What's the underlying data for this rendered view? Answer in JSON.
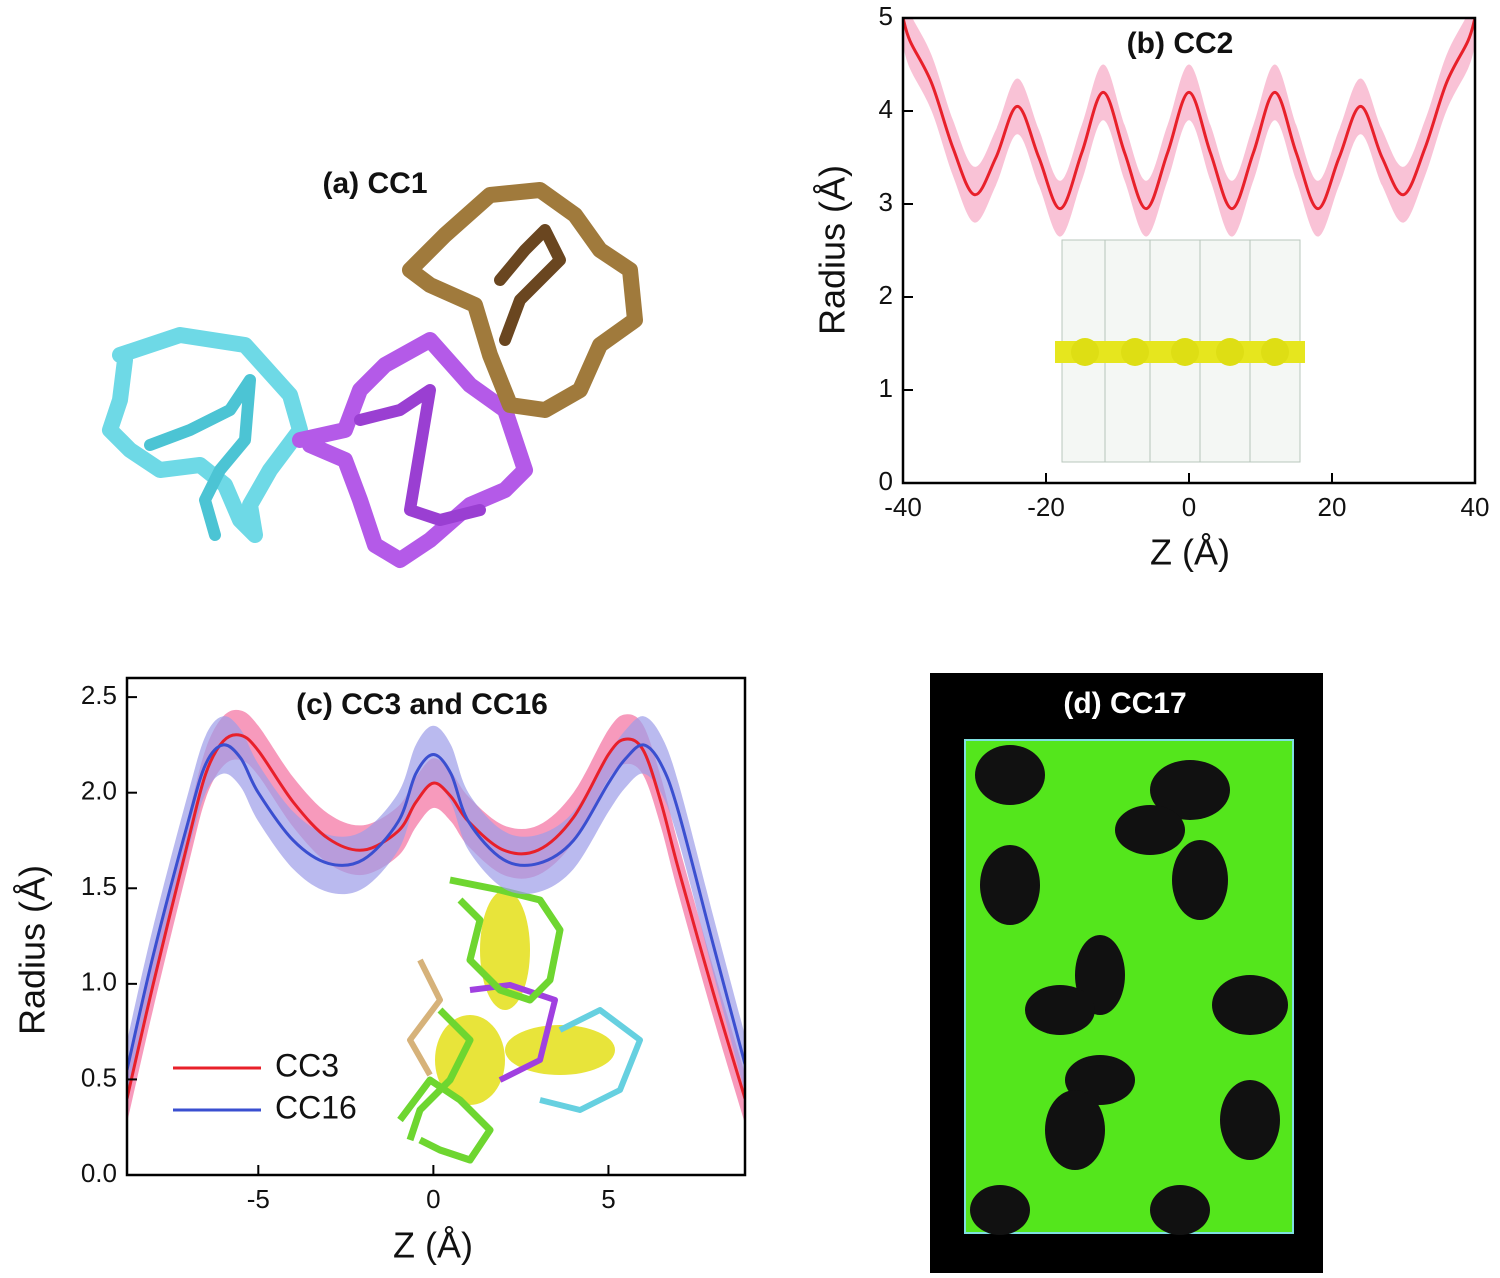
{
  "figure": {
    "panel_a_title": "(a) CC1",
    "panel_d_title": "(d) CC17"
  },
  "chart_data": [
    {
      "type": "line",
      "title": "(b) CC2",
      "xlabel": "Z (Å)",
      "ylabel": "Radius (Å)",
      "x": [
        -40,
        -39,
        -36,
        -33,
        -30,
        -27,
        -24,
        -21,
        -18,
        -15,
        -12,
        -9,
        -6,
        -3,
        0,
        3,
        6,
        9,
        12,
        15,
        18,
        21,
        24,
        27,
        30,
        33,
        36,
        39,
        40
      ],
      "series": [
        {
          "name": "CC2",
          "color": "#e8202a",
          "band_color": "#f7a8c4",
          "band": 0.3,
          "values": [
            5.0,
            4.75,
            4.3,
            3.6,
            3.1,
            3.5,
            4.05,
            3.5,
            2.95,
            3.55,
            4.2,
            3.55,
            2.95,
            3.55,
            4.2,
            3.55,
            2.95,
            3.55,
            4.2,
            3.55,
            2.95,
            3.5,
            4.05,
            3.5,
            3.1,
            3.6,
            4.3,
            4.75,
            5.0
          ]
        }
      ],
      "xlim": [
        -40,
        40
      ],
      "ylim": [
        0,
        5
      ],
      "xticks": [
        -40,
        -20,
        0,
        20,
        40
      ],
      "yticks": [
        0,
        1,
        2,
        3,
        4,
        5
      ],
      "legend": false
    },
    {
      "type": "line",
      "title": "(c) CC3 and CC16",
      "xlabel": "Z (Å)",
      "ylabel": "Radius (Å)",
      "x": [
        -8.75,
        -8,
        -7,
        -6.5,
        -6,
        -5.5,
        -5,
        -4,
        -3,
        -2,
        -1,
        -0.5,
        0,
        0.5,
        1,
        2,
        3,
        4,
        5,
        5.5,
        6,
        6.5,
        7,
        8,
        8.9
      ],
      "series": [
        {
          "name": "CC3",
          "color": "#e8202a",
          "band_color": "#f46fa0",
          "band": 0.13,
          "values": [
            0.4,
            1.0,
            1.75,
            2.1,
            2.27,
            2.3,
            2.22,
            1.95,
            1.76,
            1.7,
            1.8,
            1.95,
            2.05,
            1.98,
            1.85,
            1.7,
            1.7,
            1.87,
            2.2,
            2.28,
            2.22,
            1.95,
            1.6,
            0.95,
            0.4
          ]
        },
        {
          "name": "CC16",
          "color": "#3a4fd0",
          "band_color": "#9c9ce8",
          "band": 0.15,
          "values": [
            0.55,
            1.15,
            1.85,
            2.15,
            2.25,
            2.18,
            2.0,
            1.75,
            1.63,
            1.65,
            1.85,
            2.1,
            2.2,
            2.1,
            1.85,
            1.65,
            1.63,
            1.75,
            2.05,
            2.18,
            2.25,
            2.15,
            1.9,
            1.2,
            0.58
          ]
        }
      ],
      "xlim": [
        -8.75,
        8.9
      ],
      "ylim": [
        0,
        2.6
      ],
      "xticks": [
        -5,
        0,
        5
      ],
      "yticks": [
        {
          "value": 0,
          "label": "0.0"
        },
        {
          "value": 0.5,
          "label": "0.5"
        },
        {
          "value": 1,
          "label": "1.0"
        },
        {
          "value": 1.5,
          "label": "1.5"
        },
        {
          "value": 2,
          "label": "2.0"
        },
        {
          "value": 2.5,
          "label": "2.5"
        }
      ],
      "legend": true,
      "legend_loc": "lower left"
    }
  ]
}
